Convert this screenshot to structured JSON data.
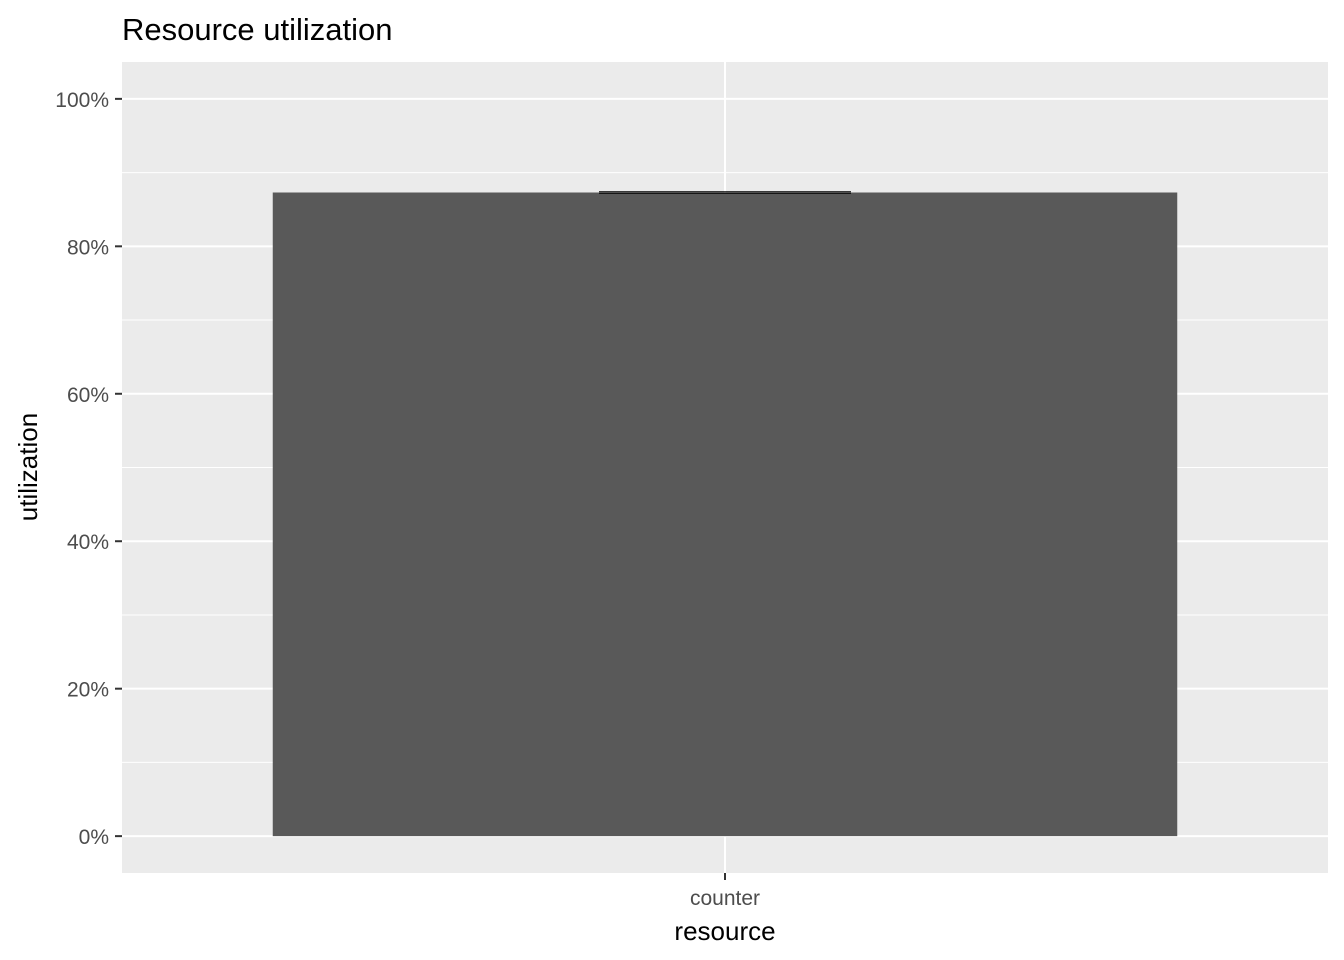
{
  "chart_data": {
    "type": "bar",
    "title": "Resource utilization",
    "xlabel": "resource",
    "ylabel": "utilization",
    "categories": [
      "counter"
    ],
    "values": [
      0.873
    ],
    "errorbar": {
      "low": 0.872,
      "high": 0.874
    },
    "ylim": [
      -0.05,
      1.05
    ],
    "yticks": [
      0,
      0.2,
      0.4,
      0.6,
      0.8,
      1.0
    ],
    "ytick_labels": [
      "0%",
      "20%",
      "40%",
      "60%",
      "80%",
      "100%"
    ],
    "grid": true,
    "colors": {
      "panel": "#ebebeb",
      "grid_major": "#ffffff",
      "grid_minor": "#f5f5f5",
      "bar": "#595959",
      "errorbar": "#000000",
      "tick": "#333333"
    }
  }
}
